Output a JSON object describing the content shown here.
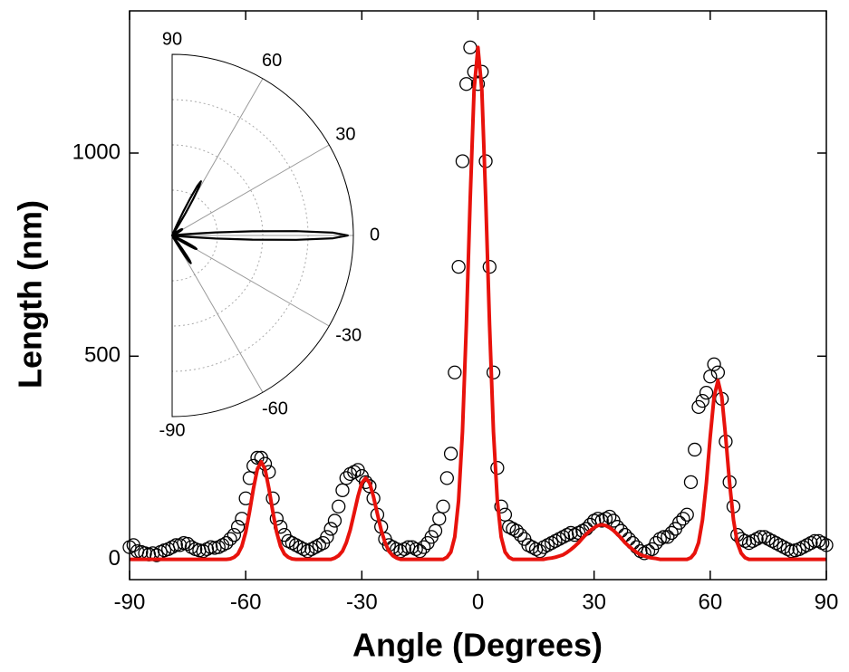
{
  "chart_data": {
    "type": "scatter",
    "x_label": "Angle (Degrees)",
    "y_label": "Length (nm)",
    "xlim": [
      -90,
      90
    ],
    "ylim": [
      -50,
      1350
    ],
    "xticks": [
      -90,
      -60,
      -30,
      0,
      30,
      60,
      90
    ],
    "yticks": [
      0,
      500,
      1000
    ],
    "series": [
      {
        "kind": "scatter",
        "color": "#000000",
        "x": [
          -90,
          -89,
          -88,
          -87,
          -86,
          -85,
          -84,
          -83,
          -82,
          -81,
          -80,
          -79,
          -78,
          -77,
          -76,
          -75,
          -74,
          -73,
          -72,
          -71,
          -70,
          -69,
          -68,
          -67,
          -66,
          -65,
          -64,
          -63,
          -62,
          -61,
          -60,
          -59,
          -58,
          -57,
          -56,
          -55,
          -54,
          -53,
          -52,
          -51,
          -50,
          -49,
          -48,
          -47,
          -46,
          -45,
          -44,
          -43,
          -42,
          -41,
          -40,
          -39,
          -38,
          -37,
          -36,
          -35,
          -34,
          -33,
          -32,
          -31,
          -30,
          -29,
          -28,
          -27,
          -26,
          -25,
          -24,
          -23,
          -22,
          -21,
          -20,
          -19,
          -18,
          -17,
          -16,
          -15,
          -14,
          -13,
          -12,
          -11,
          -10,
          -9,
          -8,
          -7,
          -6,
          -5,
          -4,
          -3,
          -2,
          -1,
          0,
          1,
          2,
          3,
          4,
          5,
          6,
          7,
          8,
          9,
          10,
          11,
          12,
          13,
          14,
          15,
          16,
          17,
          18,
          19,
          20,
          21,
          22,
          23,
          24,
          25,
          26,
          27,
          28,
          29,
          30,
          31,
          32,
          33,
          34,
          35,
          36,
          37,
          38,
          39,
          40,
          41,
          42,
          43,
          44,
          45,
          46,
          47,
          48,
          49,
          50,
          51,
          52,
          53,
          54,
          55,
          56,
          57,
          58,
          59,
          60,
          61,
          62,
          63,
          64,
          65,
          66,
          67,
          68,
          69,
          70,
          71,
          72,
          73,
          74,
          75,
          76,
          77,
          78,
          79,
          80,
          81,
          82,
          83,
          84,
          85,
          86,
          87,
          88,
          89,
          90
        ],
        "values": [
          30,
          35,
          20,
          18,
          15,
          12,
          15,
          10,
          18,
          22,
          25,
          30,
          35,
          35,
          40,
          38,
          30,
          25,
          22,
          20,
          25,
          30,
          28,
          30,
          35,
          40,
          50,
          60,
          80,
          100,
          150,
          200,
          230,
          250,
          250,
          235,
          215,
          150,
          100,
          80,
          60,
          45,
          40,
          35,
          30,
          25,
          20,
          25,
          30,
          35,
          40,
          55,
          75,
          95,
          130,
          170,
          200,
          210,
          215,
          220,
          205,
          190,
          180,
          150,
          110,
          80,
          50,
          35,
          30,
          25,
          20,
          25,
          30,
          30,
          25,
          20,
          30,
          40,
          55,
          70,
          100,
          130,
          200,
          260,
          460,
          720,
          980,
          1170,
          1260,
          1200,
          1170,
          1200,
          980,
          720,
          460,
          225,
          130,
          110,
          80,
          75,
          70,
          60,
          50,
          35,
          30,
          25,
          20,
          30,
          35,
          40,
          45,
          50,
          55,
          60,
          65,
          60,
          65,
          70,
          75,
          85,
          95,
          100,
          95,
          100,
          105,
          95,
          80,
          70,
          60,
          50,
          40,
          30,
          20,
          15,
          20,
          25,
          40,
          50,
          55,
          55,
          65,
          75,
          90,
          100,
          110,
          190,
          270,
          375,
          390,
          410,
          450,
          480,
          460,
          395,
          290,
          190,
          130,
          60,
          50,
          45,
          40,
          45,
          50,
          55,
          55,
          50,
          45,
          40,
          35,
          30,
          25,
          20,
          22,
          25,
          30,
          35,
          40,
          45,
          45,
          40,
          35
        ]
      },
      {
        "kind": "line",
        "color": "#e8120c",
        "x": [
          -90,
          -65,
          -64,
          -63,
          -62,
          -61,
          -60,
          -59,
          -58,
          -57,
          -56,
          -55,
          -54,
          -53,
          -52,
          -51,
          -50,
          -49,
          -48,
          -47,
          -38,
          -37,
          -36,
          -35,
          -34,
          -33,
          -32,
          -31,
          -30,
          -29,
          -28,
          -27,
          -26,
          -25,
          -24,
          -23,
          -22,
          -21,
          -20,
          -9,
          -8,
          -7,
          -6,
          -5,
          -4,
          -3,
          -2,
          -1,
          0,
          1,
          2,
          3,
          4,
          5,
          6,
          7,
          8,
          9,
          17,
          18,
          19,
          20,
          21,
          22,
          23,
          24,
          25,
          26,
          27,
          28,
          29,
          30,
          31,
          32,
          33,
          34,
          35,
          36,
          37,
          38,
          39,
          40,
          41,
          42,
          43,
          44,
          45,
          46,
          47,
          54,
          55,
          56,
          57,
          58,
          59,
          60,
          61,
          62,
          63,
          64,
          65,
          66,
          67,
          68,
          69,
          70,
          90
        ],
        "values": [
          0,
          0,
          1,
          5,
          13,
          32,
          67,
          117,
          174,
          222,
          240,
          222,
          174,
          117,
          67,
          32,
          13,
          5,
          1,
          0,
          0,
          3,
          9,
          20,
          41,
          72,
          113,
          155,
          188,
          200,
          188,
          155,
          113,
          72,
          41,
          20,
          9,
          3,
          0,
          0,
          5,
          18,
          55,
          144,
          314,
          577,
          891,
          1155,
          1260,
          1155,
          891,
          577,
          314,
          144,
          55,
          18,
          5,
          0,
          0,
          2,
          3,
          5,
          8,
          11,
          17,
          24,
          32,
          41,
          52,
          62,
          71,
          78,
          83,
          85,
          83,
          78,
          71,
          62,
          52,
          41,
          32,
          24,
          17,
          11,
          8,
          5,
          3,
          2,
          0,
          0,
          4,
          15,
          41,
          97,
          188,
          301,
          400,
          440,
          400,
          301,
          188,
          97,
          41,
          15,
          4,
          0,
          0
        ]
      }
    ],
    "inset": {
      "type": "polar",
      "rlim": [
        0,
        1300
      ],
      "thetaticks": [
        90,
        60,
        30,
        0,
        -30,
        -60,
        -90
      ],
      "color": "#000000"
    }
  }
}
